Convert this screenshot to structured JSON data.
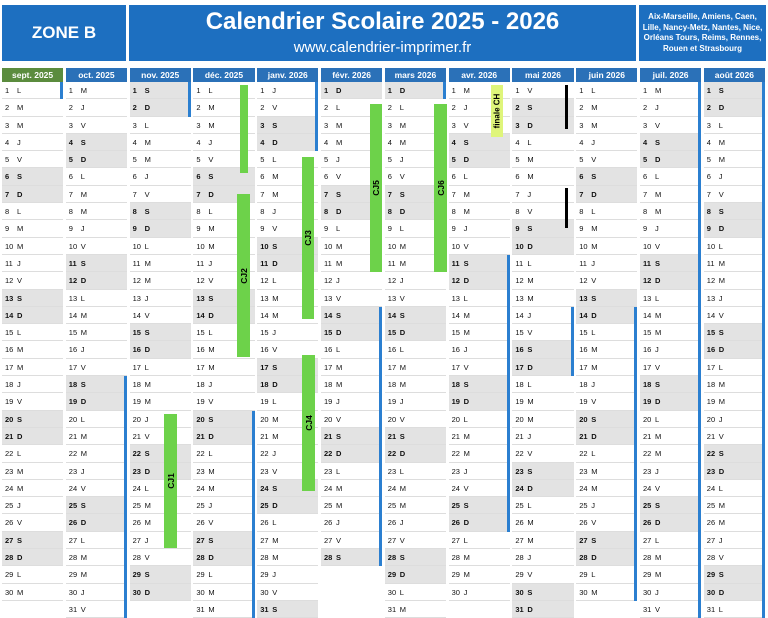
{
  "header": {
    "zone": "ZONE B",
    "title": "Calendrier Scolaire 2025 - 2026",
    "url": "www.calendrier-imprimer.fr",
    "cities": "Aix-Marseille, Amiens, Caen, Lille, Nancy-Metz, Nantes, Nice, Orléans Tours, Reims, Rennes, Rouen et Strasbourg"
  },
  "colors": {
    "header_blue": "#1d6fc0",
    "green_header": "#5b8c3e",
    "month_blue": "#2b71b8",
    "bar_green": "#6dd24a",
    "finale_yellow": "#dff57a",
    "holiday_line": "#2b7fd0"
  },
  "months": [
    {
      "name": "sept. 2025",
      "start": 1,
      "days": 30,
      "green": true
    },
    {
      "name": "oct. 2025",
      "start": 3,
      "days": 31,
      "green": false
    },
    {
      "name": "nov. 2025",
      "start": 6,
      "days": 30,
      "green": false
    },
    {
      "name": "déc. 2025",
      "start": 1,
      "days": 31,
      "green": false
    },
    {
      "name": "janv. 2026",
      "start": 4,
      "days": 31,
      "green": false
    },
    {
      "name": "févr. 2026",
      "start": 0,
      "days": 28,
      "green": false
    },
    {
      "name": "mars 2026",
      "start": 0,
      "days": 31,
      "green": false
    },
    {
      "name": "avr. 2026",
      "start": 3,
      "days": 30,
      "green": false
    },
    {
      "name": "mai 2026",
      "start": 5,
      "days": 31,
      "green": false
    },
    {
      "name": "juin 2026",
      "start": 1,
      "days": 30,
      "green": false
    },
    {
      "name": "juil. 2026",
      "start": 3,
      "days": 31,
      "green": false
    },
    {
      "name": "août 2026",
      "start": 6,
      "days": 31,
      "green": false
    }
  ],
  "day_letters": [
    "D",
    "L",
    "M",
    "M",
    "J",
    "V",
    "S"
  ],
  "annotations": {
    "cj1": "CJ1",
    "cj2": "CJ2",
    "cj3": "CJ3",
    "cj4": "CJ4",
    "cj5": "CJ5",
    "cj6": "CJ6",
    "finale": "finale CH"
  }
}
